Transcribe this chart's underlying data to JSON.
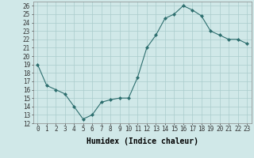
{
  "x": [
    0,
    1,
    2,
    3,
    4,
    5,
    6,
    7,
    8,
    9,
    10,
    11,
    12,
    13,
    14,
    15,
    16,
    17,
    18,
    19,
    20,
    21,
    22,
    23
  ],
  "y": [
    19.0,
    16.5,
    16.0,
    15.5,
    14.0,
    12.5,
    13.0,
    14.5,
    14.8,
    15.0,
    15.0,
    17.5,
    21.0,
    22.5,
    24.5,
    25.0,
    26.0,
    25.5,
    24.8,
    23.0,
    22.5,
    22.0,
    22.0,
    21.5
  ],
  "xlabel": "Humidex (Indice chaleur)",
  "ylabel": "",
  "xlim": [
    -0.5,
    23.5
  ],
  "ylim": [
    12,
    26.5
  ],
  "yticks": [
    12,
    13,
    14,
    15,
    16,
    17,
    18,
    19,
    20,
    21,
    22,
    23,
    24,
    25,
    26
  ],
  "xticks": [
    0,
    1,
    2,
    3,
    4,
    5,
    6,
    7,
    8,
    9,
    10,
    11,
    12,
    13,
    14,
    15,
    16,
    17,
    18,
    19,
    20,
    21,
    22,
    23
  ],
  "line_color": "#2d6e6e",
  "marker_color": "#2d6e6e",
  "bg_color": "#d0e8e8",
  "grid_color": "#aacccc",
  "title_fontsize": 7.0,
  "label_fontsize": 7.0,
  "tick_fontsize": 5.5
}
